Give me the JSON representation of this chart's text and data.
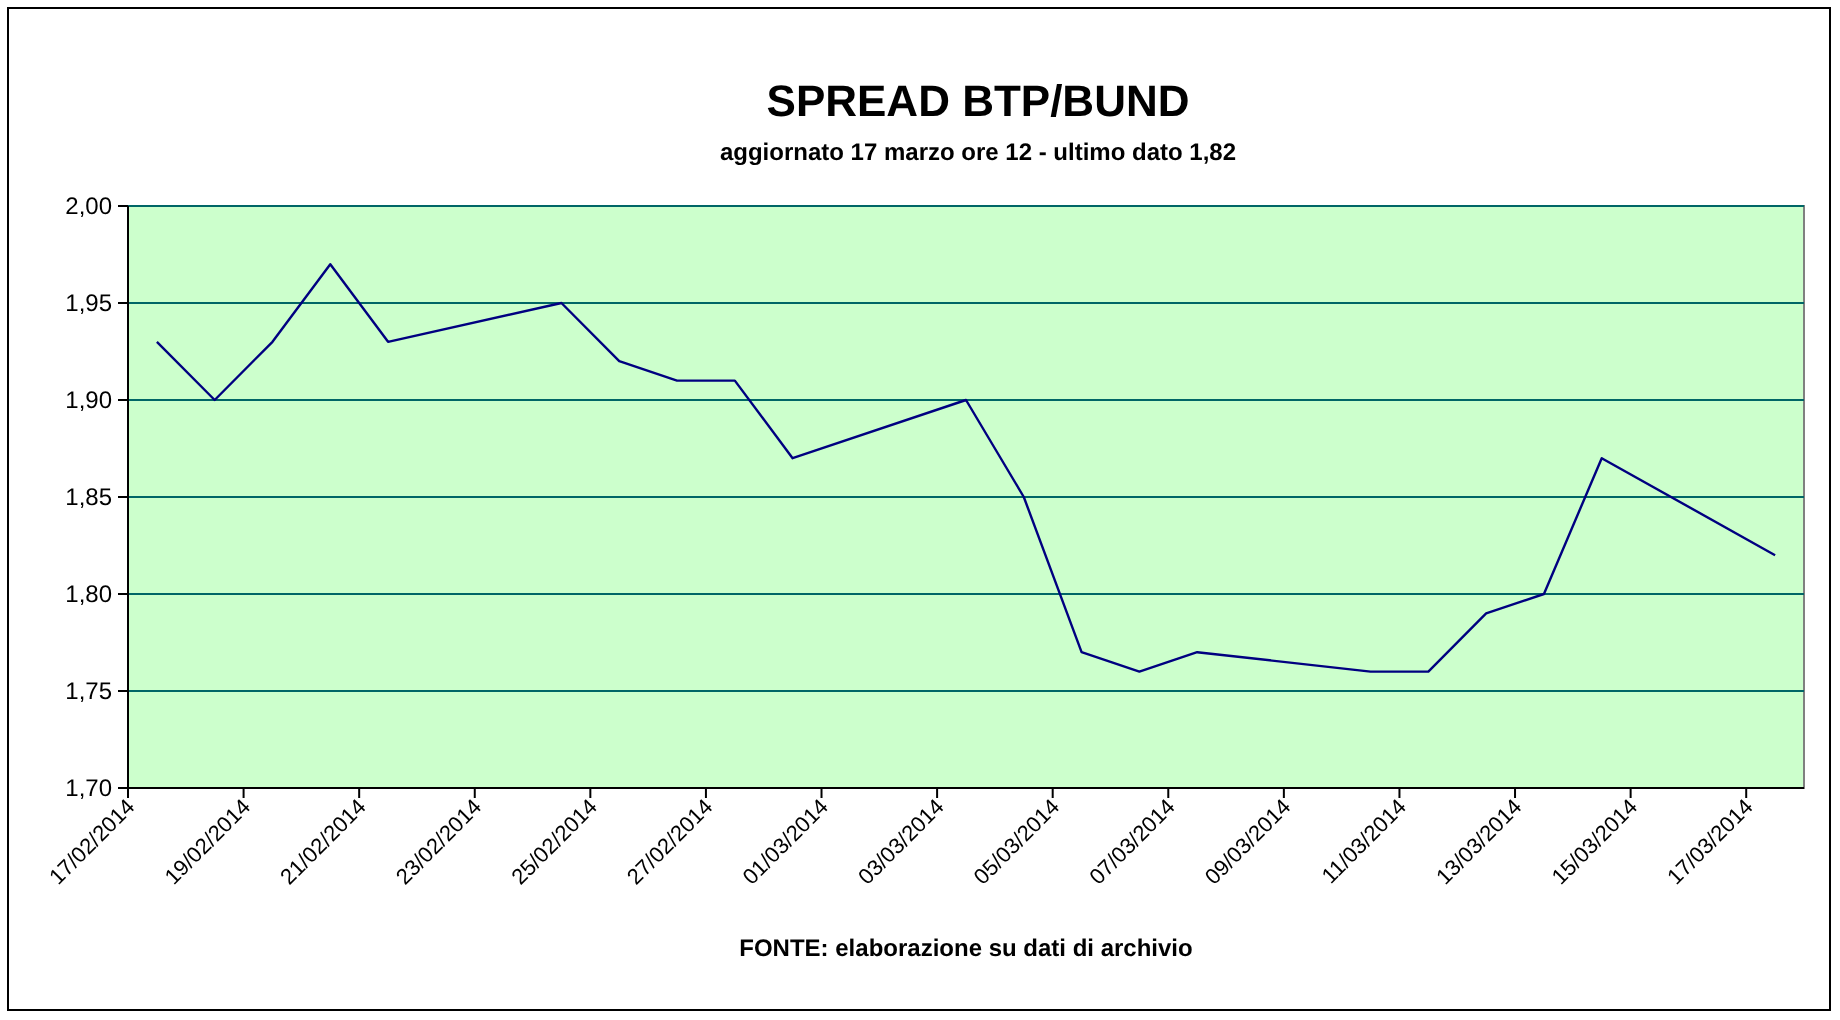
{
  "chart_data": {
    "type": "line",
    "title": "SPREAD BTP/BUND",
    "subtitle": "aggiornato 17 marzo ore 12  - ultimo dato 1,82",
    "annotations": [
      "FONTE:  elaborazione su dati di archivio"
    ],
    "x": [
      "2014-02-17T12:00",
      "2014-02-18T12:00",
      "2014-02-19T12:00",
      "2014-02-20T12:00",
      "2014-02-21T12:00",
      "2014-02-24T12:00",
      "2014-02-25T12:00",
      "2014-02-26T12:00",
      "2014-02-27T12:00",
      "2014-02-28T12:00",
      "2014-03-03T12:00",
      "2014-03-04T12:00",
      "2014-03-05T12:00",
      "2014-03-06T12:00",
      "2014-03-07T12:00",
      "2014-03-10T12:00",
      "2014-03-11T12:00",
      "2014-03-12T12:00",
      "2014-03-13T12:00",
      "2014-03-14T12:00",
      "2014-03-17T12:00"
    ],
    "series": [
      {
        "color": "#000080",
        "values": [
          1.93,
          1.9,
          1.93,
          1.97,
          1.93,
          1.95,
          1.92,
          1.91,
          1.91,
          1.87,
          1.9,
          1.85,
          1.77,
          1.76,
          1.77,
          1.76,
          1.76,
          1.79,
          1.8,
          1.87,
          1.82
        ]
      }
    ],
    "xlim": [
      "2014-02-17",
      "2014-03-18"
    ],
    "xticks": [
      {
        "value": "2014-02-17",
        "label": "17/02/2014"
      },
      {
        "value": "2014-02-19",
        "label": "19/02/2014"
      },
      {
        "value": "2014-02-21",
        "label": "21/02/2014"
      },
      {
        "value": "2014-02-23",
        "label": "23/02/2014"
      },
      {
        "value": "2014-02-25",
        "label": "25/02/2014"
      },
      {
        "value": "2014-02-27",
        "label": "27/02/2014"
      },
      {
        "value": "2014-03-01",
        "label": "01/03/2014"
      },
      {
        "value": "2014-03-03",
        "label": "03/03/2014"
      },
      {
        "value": "2014-03-05",
        "label": "05/03/2014"
      },
      {
        "value": "2014-03-07",
        "label": "07/03/2014"
      },
      {
        "value": "2014-03-09",
        "label": "09/03/2014"
      },
      {
        "value": "2014-03-11",
        "label": "11/03/2014"
      },
      {
        "value": "2014-03-13",
        "label": "13/03/2014"
      },
      {
        "value": "2014-03-15",
        "label": "15/03/2014"
      },
      {
        "value": "2014-03-17",
        "label": "17/03/2014"
      }
    ],
    "ylim": [
      1.7,
      2.0
    ],
    "yticks": [
      {
        "value": 1.7,
        "label": "1,70"
      },
      {
        "value": 1.75,
        "label": "1,75"
      },
      {
        "value": 1.8,
        "label": "1,80"
      },
      {
        "value": 1.85,
        "label": "1,85"
      },
      {
        "value": 1.9,
        "label": "1,90"
      },
      {
        "value": 1.95,
        "label": "1,95"
      },
      {
        "value": 2.0,
        "label": "2,00"
      }
    ],
    "grid": "y",
    "marker": "none",
    "line_style": "solid"
  }
}
